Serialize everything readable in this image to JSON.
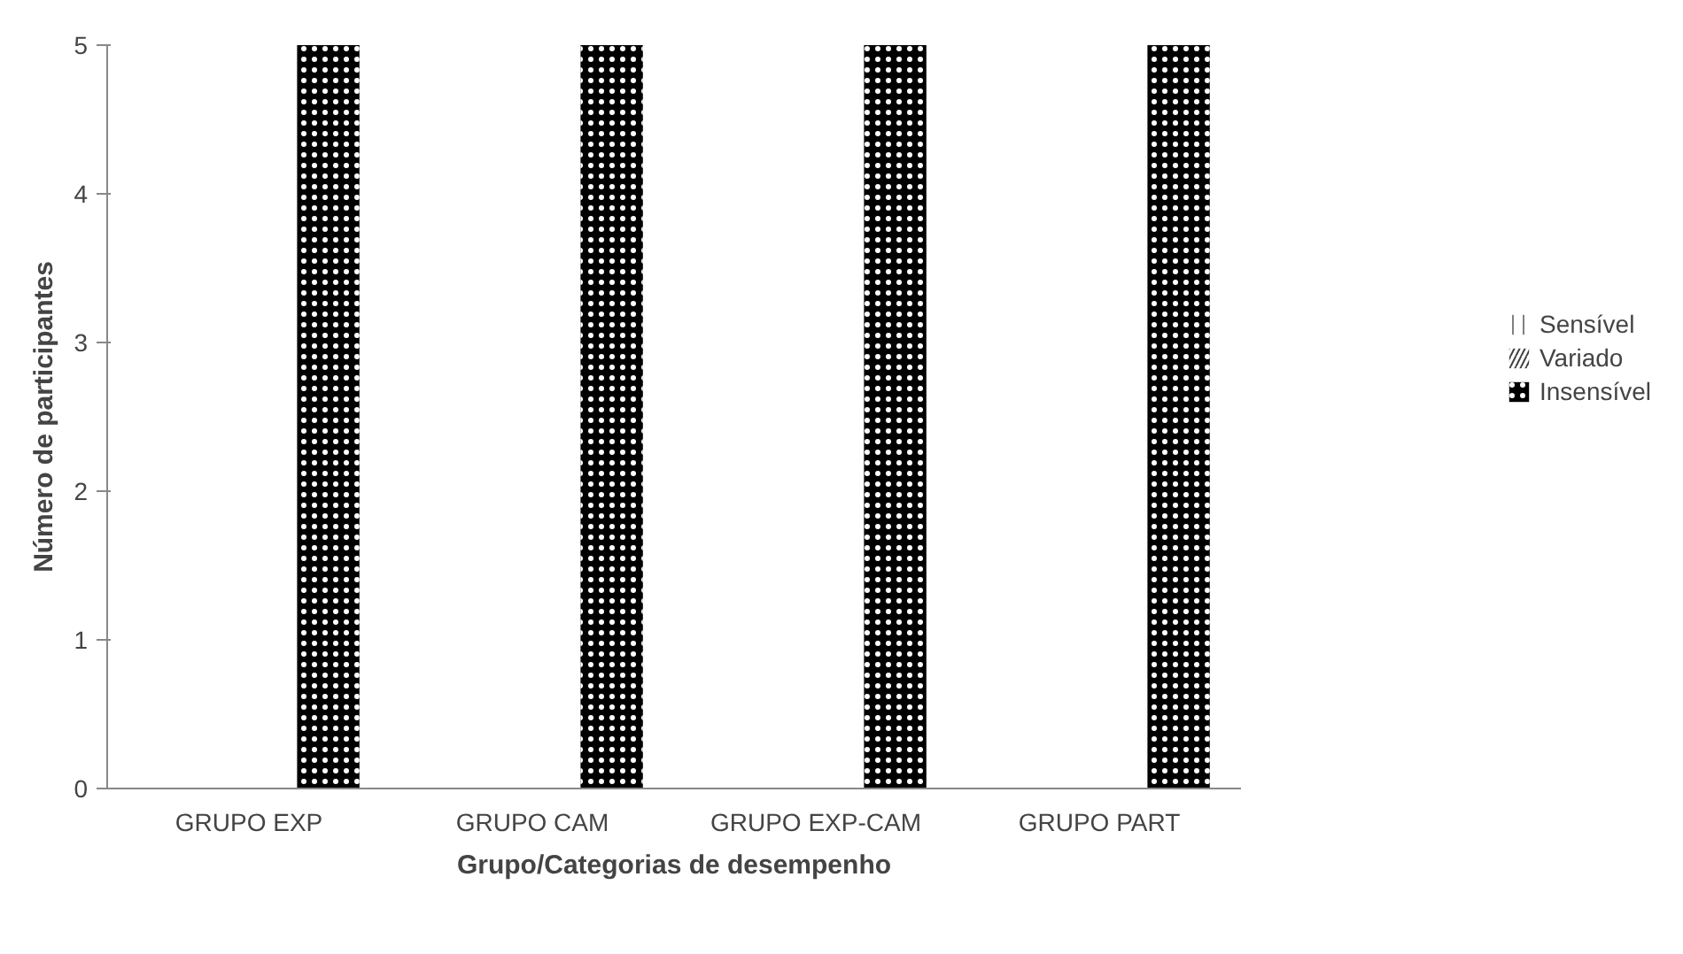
{
  "chart_data": {
    "type": "bar",
    "xlabel": "Grupo/Categorias de desempenho",
    "ylabel": "Número de participantes",
    "categories": [
      "GRUPO EXP",
      "GRUPO CAM",
      "GRUPO EXP-CAM",
      "GRUPO PART"
    ],
    "series": [
      {
        "name": "Sensível",
        "color": "#808080",
        "values": [
          0,
          0,
          0,
          0
        ]
      },
      {
        "name": "Variado",
        "color": "#404040",
        "values": [
          0,
          0,
          0,
          0
        ]
      },
      {
        "name": "Insensível",
        "color": "#000000",
        "values": [
          5,
          5,
          5,
          5
        ]
      }
    ],
    "ylim": [
      0,
      5
    ],
    "yticks": [
      0,
      1,
      2,
      3,
      4,
      5
    ],
    "grid": false,
    "legend": "right"
  }
}
